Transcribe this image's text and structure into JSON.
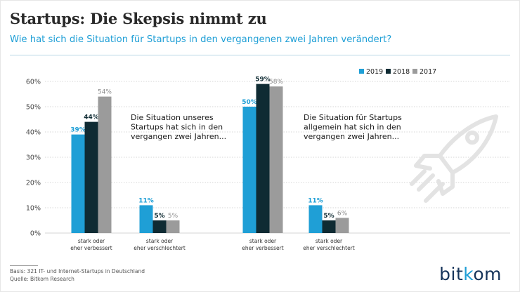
{
  "header": {
    "title": "Startups: Die Skepsis nimmt zu",
    "subtitle": "Wie hat sich die Situation für Startups in den vergangenen zwei Jahren verändert?"
  },
  "footer": {
    "basis": "Basis: 321 IT- und Internet-Startups in Deutschland",
    "source": "Quelle: Bitkom Research",
    "logo_prefix": "bit",
    "logo_o": "k",
    "logo_suffix": "om"
  },
  "colors": {
    "y2019": "#1f9fd6",
    "y2018": "#0f2b33",
    "y2017": "#9b9b9b"
  },
  "chart_data": {
    "type": "bar",
    "title": "Startups: Die Skepsis nimmt zu",
    "ylim": [
      0,
      60
    ],
    "y_ticks": [
      "0%",
      "10%",
      "20%",
      "30%",
      "40%",
      "50%",
      "60%"
    ],
    "legend": [
      "2019",
      "2018",
      "2017"
    ],
    "legend_position": "top-right",
    "groups": [
      {
        "annotation": [
          "Die Situation unseres",
          "Startups hat sich in den",
          "vergangen zwei Jahren..."
        ],
        "categories": [
          {
            "label": [
              "stark oder",
              "eher verbessert"
            ],
            "values": [
              39,
              44,
              54
            ],
            "labels": [
              "39%",
              "44%",
              "54%"
            ]
          },
          {
            "label": [
              "stark oder",
              "eher verschlechtert"
            ],
            "values": [
              11,
              5,
              5
            ],
            "labels": [
              "11%",
              "5%",
              "5%"
            ]
          }
        ]
      },
      {
        "annotation": [
          "Die Situation für Startups",
          "allgemein hat sich in den",
          "vergangen zwei Jahren..."
        ],
        "categories": [
          {
            "label": [
              "stark oder",
              "eher verbessert"
            ],
            "values": [
              50,
              59,
              58
            ],
            "labels": [
              "50%",
              "59%",
              "58%"
            ]
          },
          {
            "label": [
              "stark oder",
              "eher verschlechtert"
            ],
            "values": [
              11,
              5,
              6
            ],
            "labels": [
              "11%",
              "5%",
              "6%"
            ]
          }
        ]
      }
    ]
  }
}
